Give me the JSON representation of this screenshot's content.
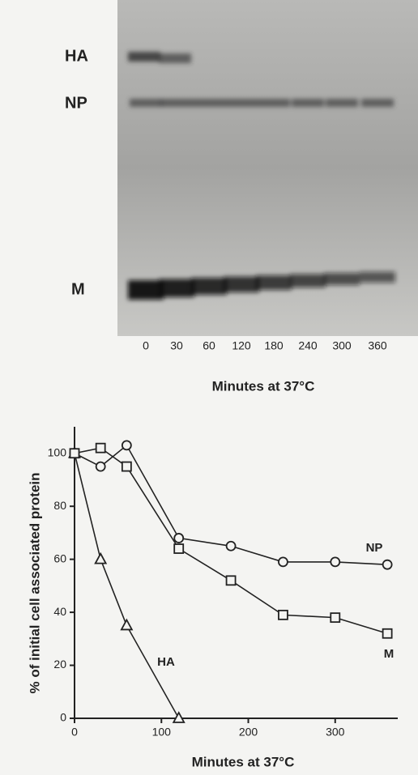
{
  "gel": {
    "bands": [
      "HA",
      "NP",
      "M"
    ],
    "lanes": [
      "0",
      "30",
      "60",
      "120",
      "180",
      "240",
      "300",
      "360"
    ],
    "xlabel": "Minutes at 37°C"
  },
  "chart_data": {
    "type": "line",
    "xlabel": "Minutes at 37°C",
    "ylabel": "% of initial cell associated protein",
    "series": [
      {
        "name": "HA",
        "color": "#222222",
        "marker": "triangle",
        "x": [
          0,
          30,
          60,
          120
        ],
        "values": [
          100,
          60,
          35,
          0
        ]
      },
      {
        "name": "NP",
        "color": "#222222",
        "marker": "circle",
        "x": [
          0,
          30,
          60,
          120,
          180,
          240,
          300,
          360
        ],
        "values": [
          100,
          95,
          103,
          68,
          65,
          59,
          59,
          58
        ]
      },
      {
        "name": "M",
        "color": "#222222",
        "marker": "square",
        "x": [
          0,
          30,
          60,
          120,
          180,
          240,
          300,
          360
        ],
        "values": [
          100,
          102,
          95,
          64,
          52,
          39,
          38,
          32
        ]
      }
    ],
    "xlim": [
      0,
      372
    ],
    "ylim": [
      0,
      110
    ],
    "xticks": [
      0,
      100,
      200,
      300
    ],
    "yticks": [
      0,
      20,
      40,
      60,
      80,
      100
    ]
  }
}
